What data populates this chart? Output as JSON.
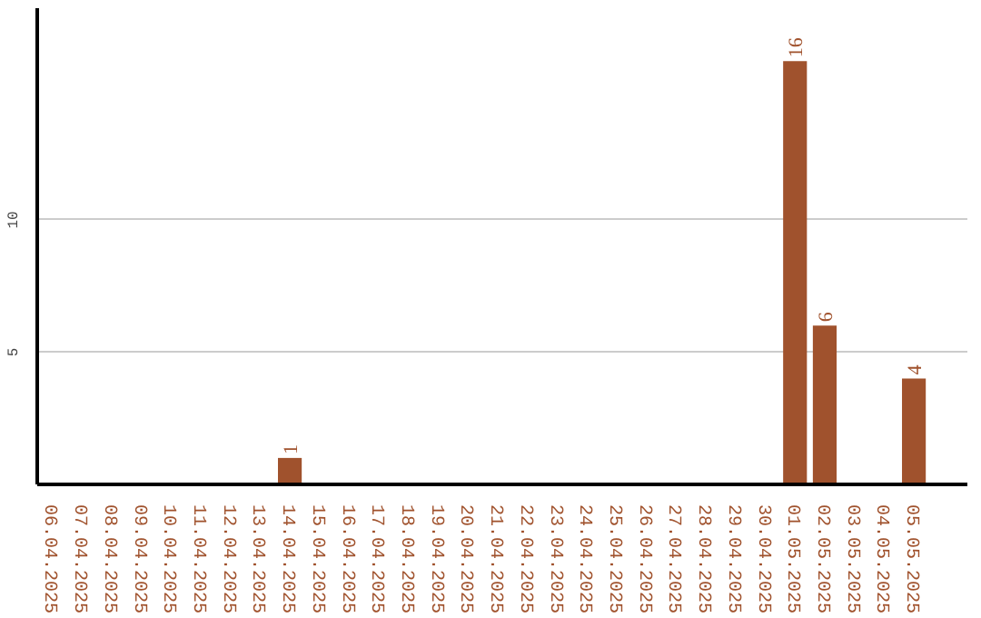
{
  "chart_data": {
    "type": "bar",
    "categories": [
      "06.04.2025",
      "07.04.2025",
      "08.04.2025",
      "09.04.2025",
      "10.04.2025",
      "11.04.2025",
      "12.04.2025",
      "13.04.2025",
      "14.04.2025",
      "15.04.2025",
      "16.04.2025",
      "17.04.2025",
      "18.04.2025",
      "19.04.2025",
      "20.04.2025",
      "21.04.2025",
      "22.04.2025",
      "23.04.2025",
      "24.04.2025",
      "25.04.2025",
      "26.04.2025",
      "27.04.2025",
      "28.04.2025",
      "29.04.2025",
      "30.04.2025",
      "01.05.2025",
      "02.05.2025",
      "03.05.2025",
      "04.05.2025",
      "05.05.2025"
    ],
    "values": [
      0,
      0,
      0,
      0,
      0,
      0,
      0,
      0,
      1,
      0,
      0,
      0,
      0,
      0,
      0,
      0,
      0,
      0,
      0,
      0,
      0,
      0,
      0,
      0,
      0,
      16,
      6,
      0,
      0,
      4
    ],
    "value_labels": [
      null,
      null,
      null,
      null,
      null,
      null,
      null,
      null,
      "1",
      null,
      null,
      null,
      null,
      null,
      null,
      null,
      null,
      null,
      null,
      null,
      null,
      null,
      null,
      null,
      null,
      "16",
      "6",
      null,
      null,
      "4"
    ],
    "color": "#a0522d",
    "ylim": [
      0,
      18
    ],
    "yticks": [
      5,
      10
    ],
    "grid": "y"
  }
}
